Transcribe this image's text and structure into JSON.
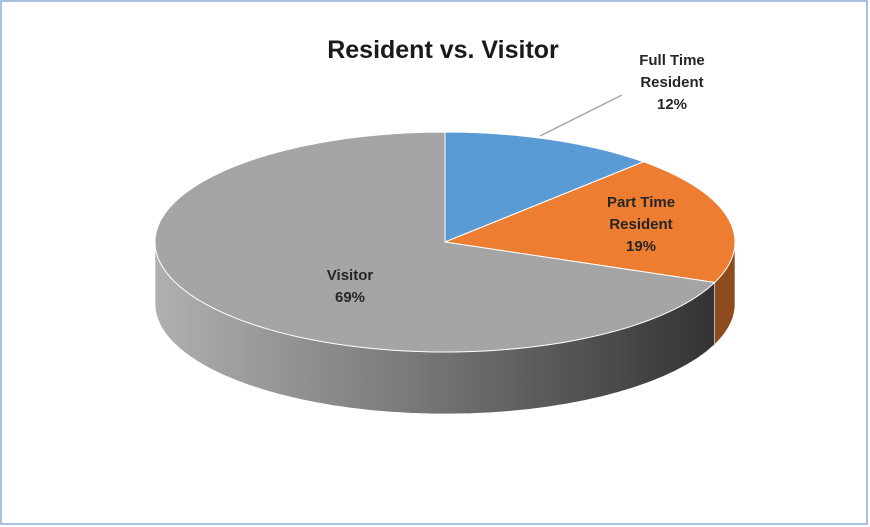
{
  "chart_data": {
    "type": "pie",
    "title": "Resident vs. Visitor",
    "categories": [
      "Full Time Resident",
      "Part Time Resident",
      "Visitor"
    ],
    "values": [
      12,
      19,
      69
    ],
    "value_labels": [
      "12%",
      "19%",
      "69%"
    ],
    "colors": [
      "#5b9bd5",
      "#ed7d31",
      "#a5a5a5"
    ]
  }
}
